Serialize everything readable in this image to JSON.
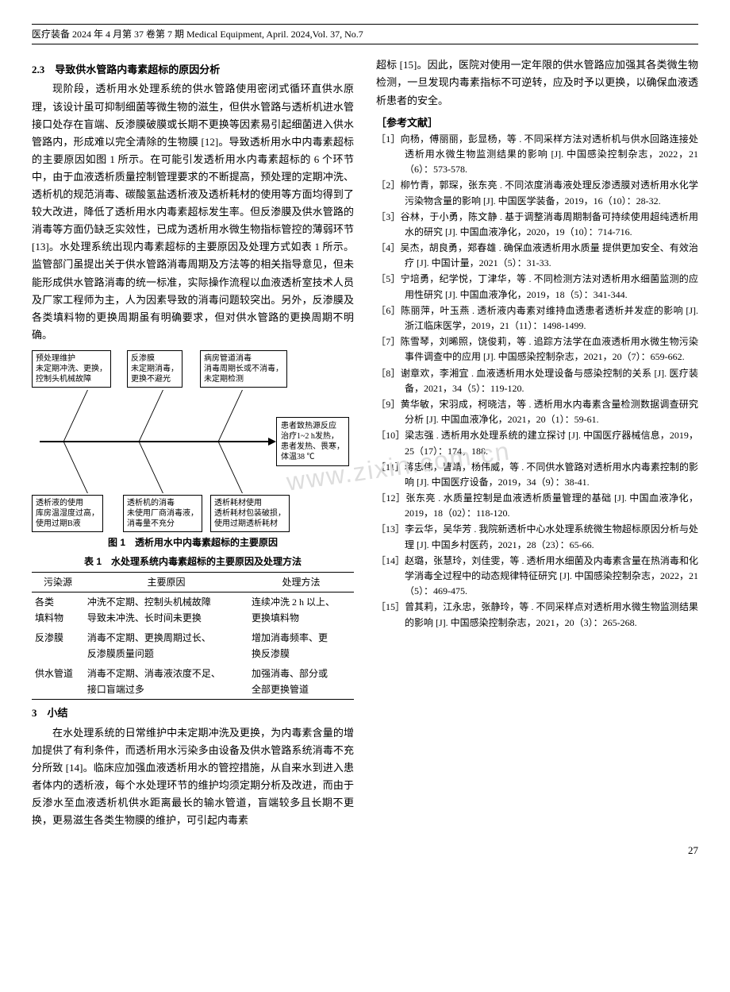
{
  "header": "医疗装备 2024 年 4 月第 37 卷第 7 期 Medical Equipment, April. 2024,Vol. 37, No.7",
  "watermark": "www.zixin.com.cn",
  "section23": {
    "head": "2.3　导致供水管路内毒素超标的原因分析",
    "p1": "现阶段，透析用水处理系统的供水管路使用密闭式循环直供水原理，该设计虽可抑制细菌等微生物的滋生，但供水管路与透析机进水管接口处存在盲端、反渗膜破膜或长期不更换等因素易引起细菌进入供水管路内，形成难以完全清除的生物膜 [12]。导致透析用水中内毒素超标的主要原因如图 1 所示。在可能引发透析用水内毒素超标的 6 个环节中，由于血液透析质量控制管理要求的不断提高，预处理的定期冲洗、透析机的规范消毒、碳酸氢盐透析液及透析耗材的使用等方面均得到了较大改进，降低了透析用水内毒素超标发生率。但反渗膜及供水管路的消毒等方面仍缺乏实效性，已成为透析用水微生物指标管控的薄弱环节 [13]。水处理系统出现内毒素超标的主要原因及处理方式如表 1 所示。监管部门虽提出关于供水管路消毒周期及方法等的相关指导意见，但未能形成供水管路消毒的统一标准，实际操作流程以血液透析室技术人员及厂家工程师为主，人为因素导致的消毒问题较突出。另外，反渗膜及各类填料物的更换周期虽有明确要求，但对供水管路的更换周期不明确。"
  },
  "figure1": {
    "caption": "图 1　透析用水中内毒素超标的主要原因",
    "top_causes": [
      "预处理维护\n未定期冲洗、更换，\n控制头机械故障",
      "反渗膜\n未定期消毒，\n更换不避光",
      "病房管道消毒\n消毒周期长或不消毒，\n未定期检测"
    ],
    "bottom_causes": [
      "透析液的使用\n库房温湿度过高，\n使用过期B液",
      "透析机的消毒\n未使用厂商消毒液，\n消毒量不充分",
      "透析耗材使用\n透析耗材包装破损，\n使用过期透析耗材"
    ],
    "effect": "患者致热源反应\n治疗1~2 h发热，\n患者发热、畏寒，\n体温38 ℃"
  },
  "table1": {
    "caption": "表 1　水处理系统内毒素超标的主要原因及处理方法",
    "columns": [
      "污染源",
      "主要原因",
      "处理方法"
    ],
    "rows": [
      [
        "各类\n填料物",
        "冲洗不定期、控制头机械故障\n导致未冲洗、长时间未更换",
        "连续冲洗 2 h 以上、\n更换填料物"
      ],
      [
        "反渗膜",
        "消毒不定期、更换周期过长、\n反渗膜质量问题",
        "增加消毒频率、更\n换反渗膜"
      ],
      [
        "供水管道",
        "消毒不定期、消毒液浓度不足、\n接口盲端过多",
        "加强消毒、部分或\n全部更换管道"
      ]
    ]
  },
  "section3": {
    "head": "3　小结",
    "p1": "在水处理系统的日常维护中未定期冲洗及更换，为内毒素含量的增加提供了有利条件，而透析用水污染多由设备及供水管路系统消毒不充分所致 [14]。临床应加强血液透析用水的管控措施，从自来水到进入患者体内的透析液，每个水处理环节的维护均须定期分析及改进，而由于反渗水至血液透析机供水距离最长的输水管道，盲端较多且长期不更换，更易滋生各类生物膜的维护，可引起内毒素"
  },
  "col2_top": "超标 [15]。因此，医院对使用一定年限的供水管路应加强其各类微生物检测，一旦发现内毒素指标不可逆转，应及时予以更换，以确保血液透析患者的安全。",
  "refs_head": "［参考文献］",
  "refs": [
    "［1］向杨，傅丽丽，彭显杨，等 . 不同采样方法对透析机与供水回路连接处透析用水微生物监测结果的影响 [J]. 中国感染控制杂志，2022，21（6）：573-578.",
    "［2］柳竹青，郭琛，张东亮 . 不同浓度消毒液处理反渗透膜对透析用水化学污染物含量的影响 [J]. 中国医学装备，2019，16（10）：28-32.",
    "［3］谷林，于小勇，陈文静 . 基于调整消毒周期制备可持续使用超纯透析用水的研究 [J]. 中国血液净化，2020，19（10）：714-716.",
    "［4］吴杰，胡良勇，郑春雄 . 确保血液透析用水质量 提供更加安全、有效治疗 [J]. 中国计量，2021（5）：31-33.",
    "［5］宁培勇，纪学悦，丁津华，等 . 不同检测方法对透析用水细菌监测的应用性研究 [J]. 中国血液净化，2019，18（5）：341-344.",
    "［6］陈丽萍，叶玉燕 . 透析液内毒素对维持血透患者透析并发症的影响 [J]. 浙江临床医学，2019，21（11）：1498-1499.",
    "［7］陈雪琴，刘晞照，饶俊莉，等 . 追踪方法学在血液透析用水微生物污染事件调查中的应用 [J]. 中国感染控制杂志，2021，20（7）：659-662.",
    "［8］谢章欢，李湘宜 . 血液透析用水处理设备与感染控制的关系 [J]. 医疗装备，2021，34（5）：119-120.",
    "［9］黄华敏，宋羽成，柯晓洁，等 . 透析用水内毒素含量检测数据调查研究分析 [J]. 中国血液净化，2021，20（1）：59-61.",
    "［10］梁志强 . 透析用水处理系统的建立探讨 [J]. 中国医疗器械信息，2019，25（17）：174，188.",
    "［11］蒋忠伟，曹靖，杨伟威，等 . 不同供水管路对透析用水内毒素控制的影响 [J]. 中国医疗设备，2019，34（9）：38-41.",
    "［12］张东亮 . 水质量控制是血液透析质量管理的基础 [J]. 中国血液净化，2019，18（02）：118-120.",
    "［13］李云华，吴华芳 . 我院新透析中心水处理系统微生物超标原因分析与处理 [J]. 中国乡村医药，2021，28（23）：65-66.",
    "［14］赵璐，张慧玲，刘佳雯，等 . 透析用水细菌及内毒素含量在热消毒和化学消毒全过程中的动态规律特征研究 [J]. 中国感染控制杂志，2022，21（5）：469-475.",
    "［15］曾其莉，江永忠，张静玲，等 . 不同采样点对透析用水微生物监测结果的影响 [J]. 中国感染控制杂志，2021，20（3）：265-268."
  ],
  "page": "27"
}
